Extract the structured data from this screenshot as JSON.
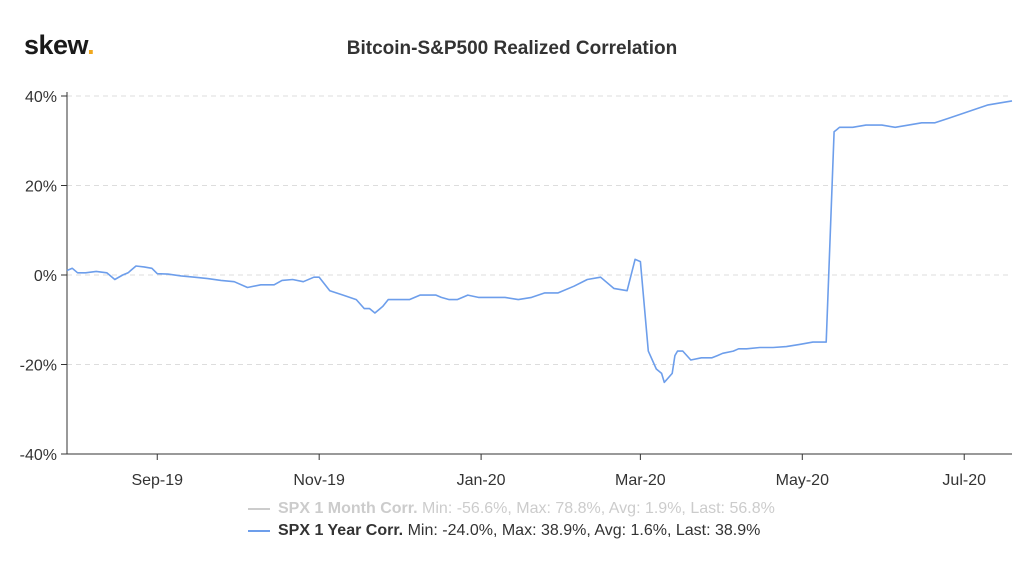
{
  "logo": {
    "text": "skew",
    "dot": ".",
    "dot_color": "#f0a81e"
  },
  "chart_data": {
    "type": "line",
    "title": "Bitcoin-S&P500 Realized Correlation",
    "xlabel": "",
    "ylabel": "",
    "ylim": [
      -40,
      40
    ],
    "yticks": [
      -40,
      -20,
      0,
      20,
      40
    ],
    "ytick_labels": [
      "-40%",
      "-20%",
      "0%",
      "20%",
      "40%"
    ],
    "xlim": [
      "2019-07-29",
      "2020-07-19"
    ],
    "xticks": [
      "2019-09-01",
      "2019-11-01",
      "2020-01-01",
      "2020-03-01",
      "2020-05-01",
      "2020-07-01"
    ],
    "xtick_labels": [
      "Sep-19",
      "Nov-19",
      "Jan-20",
      "Mar-20",
      "May-20",
      "Jul-20"
    ],
    "grid": true,
    "legend_position": "bottom",
    "series": [
      {
        "name": "SPX 1 Month Corr.",
        "stats": "Min: -56.6%, Max: 78.8%, Avg: 1.9%, Last: 56.8%",
        "visible": false,
        "color": "#cccccc",
        "x": [],
        "y": []
      },
      {
        "name": "SPX 1 Year Corr.",
        "stats": "Min: -24.0%, Max: 38.9%, Avg: 1.6%, Last: 38.9%",
        "visible": true,
        "color": "#6d9eeb",
        "x": [
          "2019-07-29",
          "2019-07-31",
          "2019-08-02",
          "2019-08-05",
          "2019-08-09",
          "2019-08-13",
          "2019-08-16",
          "2019-08-19",
          "2019-08-21",
          "2019-08-22",
          "2019-08-24",
          "2019-08-27",
          "2019-08-30",
          "2019-09-01",
          "2019-09-05",
          "2019-09-10",
          "2019-09-15",
          "2019-09-20",
          "2019-09-25",
          "2019-09-30",
          "2019-10-05",
          "2019-10-10",
          "2019-10-15",
          "2019-10-18",
          "2019-10-22",
          "2019-10-26",
          "2019-10-30",
          "2019-11-01",
          "2019-11-05",
          "2019-11-10",
          "2019-11-15",
          "2019-11-18",
          "2019-11-20",
          "2019-11-22",
          "2019-11-25",
          "2019-11-27",
          "2019-12-01",
          "2019-12-05",
          "2019-12-09",
          "2019-12-11",
          "2019-12-15",
          "2019-12-17",
          "2019-12-20",
          "2019-12-23",
          "2019-12-27",
          "2019-12-31",
          "2020-01-05",
          "2020-01-10",
          "2020-01-15",
          "2020-01-20",
          "2020-01-25",
          "2020-01-30",
          "2020-02-05",
          "2020-02-10",
          "2020-02-15",
          "2020-02-20",
          "2020-02-25",
          "2020-02-28",
          "2020-03-01",
          "2020-03-04",
          "2020-03-07",
          "2020-03-09",
          "2020-03-10",
          "2020-03-13",
          "2020-03-14",
          "2020-03-15",
          "2020-03-17",
          "2020-03-20",
          "2020-03-24",
          "2020-03-27",
          "2020-03-28",
          "2020-03-30",
          "2020-04-01",
          "2020-04-05",
          "2020-04-07",
          "2020-04-10",
          "2020-04-15",
          "2020-04-20",
          "2020-04-25",
          "2020-04-30",
          "2020-05-05",
          "2020-05-10",
          "2020-05-13",
          "2020-05-14",
          "2020-05-15",
          "2020-05-20",
          "2020-05-25",
          "2020-05-31",
          "2020-06-05",
          "2020-06-10",
          "2020-06-15",
          "2020-06-20",
          "2020-06-25",
          "2020-06-30",
          "2020-07-05",
          "2020-07-10",
          "2020-07-15",
          "2020-07-19"
        ],
        "y": [
          1.0,
          1.5,
          0.5,
          0.5,
          0.8,
          0.5,
          -1.0,
          0.0,
          0.5,
          1.0,
          2.0,
          1.8,
          1.5,
          0.3,
          0.2,
          -0.2,
          -0.5,
          -0.8,
          -1.2,
          -1.5,
          -2.8,
          -2.2,
          -2.2,
          -1.2,
          -1.0,
          -1.5,
          -0.5,
          -0.5,
          -3.5,
          -4.5,
          -5.5,
          -7.5,
          -7.5,
          -8.5,
          -7.0,
          -5.5,
          -5.5,
          -5.5,
          -4.5,
          -4.5,
          -4.5,
          -5.0,
          -5.5,
          -5.5,
          -4.5,
          -5.0,
          -5.0,
          -5.0,
          -5.5,
          -5.0,
          -4.0,
          -4.0,
          -2.5,
          -1.0,
          -0.5,
          -3.0,
          -3.5,
          3.5,
          3.0,
          -17.0,
          -21.0,
          -22.0,
          -24.0,
          -22.0,
          -18.0,
          -17.0,
          -17.0,
          -19.0,
          -18.5,
          -18.5,
          -18.5,
          -18.0,
          -17.5,
          -17.0,
          -16.5,
          -16.5,
          -16.2,
          -16.2,
          -16.0,
          -15.5,
          -15.0,
          -15.0,
          32.0,
          32.5,
          33.0,
          33.0,
          33.5,
          33.5,
          33.0,
          33.5,
          34.0,
          34.0,
          35.0,
          36.0,
          37.0,
          38.0,
          38.5,
          38.9
        ]
      }
    ]
  }
}
